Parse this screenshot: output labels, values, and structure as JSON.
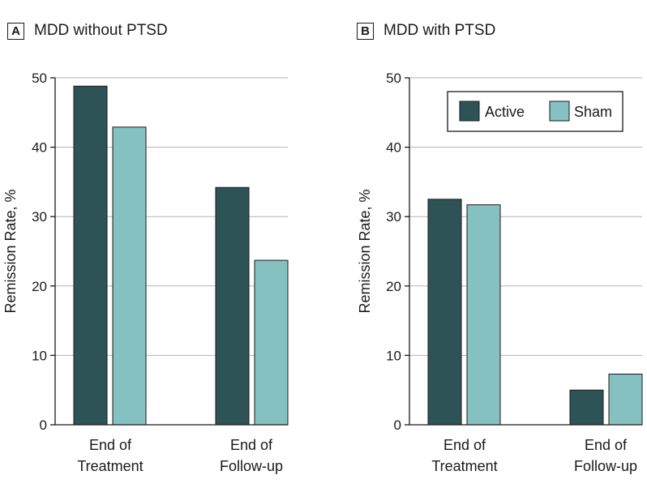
{
  "chart_data": [
    {
      "type": "bar",
      "panel_label": "A",
      "title": "MDD without PTSD",
      "ylabel": "Remission Rate, %",
      "xlabel": "",
      "ylim": [
        0,
        50
      ],
      "yticks": [
        0,
        10,
        20,
        30,
        40,
        50
      ],
      "categories": [
        [
          "End of",
          "Treatment"
        ],
        [
          "End of",
          "Follow-up"
        ]
      ],
      "series": [
        {
          "name": "Active",
          "color": "#2d5356",
          "values": [
            48.8,
            34.2
          ]
        },
        {
          "name": "Sham",
          "color": "#85c1c0",
          "values": [
            42.9,
            23.7
          ]
        }
      ],
      "grid": true,
      "legend": null
    },
    {
      "type": "bar",
      "panel_label": "B",
      "title": "MDD with PTSD",
      "ylabel": "Remission Rate, %",
      "xlabel": "",
      "ylim": [
        0,
        50
      ],
      "yticks": [
        0,
        10,
        20,
        30,
        40,
        50
      ],
      "categories": [
        [
          "End of",
          "Treatment"
        ],
        [
          "End of",
          "Follow-up"
        ]
      ],
      "series": [
        {
          "name": "Active",
          "color": "#2d5356",
          "values": [
            32.5,
            5.0
          ]
        },
        {
          "name": "Sham",
          "color": "#85c1c0",
          "values": [
            31.7,
            7.3
          ]
        }
      ],
      "grid": true,
      "legend": "top-right"
    }
  ],
  "legend_items": [
    {
      "label": "Active",
      "color": "#2d5356"
    },
    {
      "label": "Sham",
      "color": "#85c1c0"
    }
  ]
}
